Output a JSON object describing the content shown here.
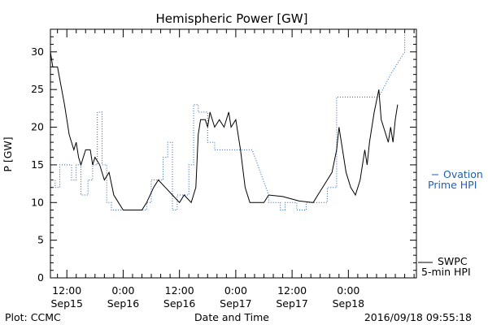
{
  "chart_data": {
    "type": "line",
    "title": "Hemispheric Power [GW]",
    "xlabel": "Date and Time",
    "ylabel": "P [GW]",
    "ylim": [
      0,
      33
    ],
    "xlim": [
      "2016-09-15 08:30",
      "2016-09-18 14:30"
    ],
    "yticks": [
      0,
      5,
      10,
      15,
      20,
      25,
      30
    ],
    "xticks": [
      {
        "time": "2016-09-15 12:00",
        "line1": "12:00",
        "line2": "Sep15"
      },
      {
        "time": "2016-09-16 00:00",
        "line1": "0:00",
        "line2": "Sep16"
      },
      {
        "time": "2016-09-16 12:00",
        "line1": "12:00",
        "line2": "Sep16"
      },
      {
        "time": "2016-09-17 00:00",
        "line1": "0:00",
        "line2": "Sep17"
      },
      {
        "time": "2016-09-17 12:00",
        "line1": "12:00",
        "line2": "Sep17"
      },
      {
        "time": "2016-09-18 00:00",
        "line1": "0:00",
        "line2": "Sep18"
      }
    ],
    "grid": false,
    "legend_position": "right",
    "series": [
      {
        "name": "Ovation Prime HPI",
        "legend_line1": "Ovation",
        "legend_line2": "Prime HPI",
        "color": "#1f5fb5",
        "style": "dotted",
        "points": [
          [
            "2016-09-15 08:30",
            13
          ],
          [
            "2016-09-15 09:30",
            13
          ],
          [
            "2016-09-15 09:30",
            12
          ],
          [
            "2016-09-15 10:30",
            12
          ],
          [
            "2016-09-15 10:30",
            15
          ],
          [
            "2016-09-15 13:00",
            15
          ],
          [
            "2016-09-15 13:00",
            13
          ],
          [
            "2016-09-15 14:00",
            13
          ],
          [
            "2016-09-15 14:00",
            15
          ],
          [
            "2016-09-15 15:00",
            15
          ],
          [
            "2016-09-15 15:00",
            11
          ],
          [
            "2016-09-15 16:30",
            11
          ],
          [
            "2016-09-15 16:30",
            13
          ],
          [
            "2016-09-15 17:30",
            13
          ],
          [
            "2016-09-15 17:30",
            15
          ],
          [
            "2016-09-15 18:30",
            15
          ],
          [
            "2016-09-15 18:30",
            22
          ],
          [
            "2016-09-15 19:30",
            22
          ],
          [
            "2016-09-15 19:30",
            15
          ],
          [
            "2016-09-15 20:30",
            15
          ],
          [
            "2016-09-15 20:30",
            10
          ],
          [
            "2016-09-15 21:30",
            10
          ],
          [
            "2016-09-15 21:30",
            9
          ],
          [
            "2016-09-16 05:00",
            9
          ],
          [
            "2016-09-16 05:00",
            10
          ],
          [
            "2016-09-16 06:00",
            10
          ],
          [
            "2016-09-16 06:00",
            13
          ],
          [
            "2016-09-16 08:30",
            13
          ],
          [
            "2016-09-16 08:30",
            16
          ],
          [
            "2016-09-16 09:30",
            16
          ],
          [
            "2016-09-16 09:30",
            18
          ],
          [
            "2016-09-16 10:30",
            18
          ],
          [
            "2016-09-16 10:30",
            9
          ],
          [
            "2016-09-16 11:30",
            9
          ],
          [
            "2016-09-16 11:30",
            11
          ],
          [
            "2016-09-16 14:00",
            11
          ],
          [
            "2016-09-16 14:00",
            15
          ],
          [
            "2016-09-16 15:00",
            15
          ],
          [
            "2016-09-16 15:00",
            23
          ],
          [
            "2016-09-16 16:00",
            23
          ],
          [
            "2016-09-16 16:00",
            22
          ],
          [
            "2016-09-16 18:00",
            22
          ],
          [
            "2016-09-16 18:00",
            18
          ],
          [
            "2016-09-16 19:30",
            18
          ],
          [
            "2016-09-16 19:30",
            17
          ],
          [
            "2016-09-17 03:30",
            17
          ],
          [
            "2016-09-17 07:00",
            11
          ],
          [
            "2016-09-17 07:00",
            10
          ],
          [
            "2016-09-17 09:30",
            10
          ],
          [
            "2016-09-17 09:30",
            9
          ],
          [
            "2016-09-17 10:30",
            9
          ],
          [
            "2016-09-17 10:30",
            10
          ],
          [
            "2016-09-17 13:00",
            10
          ],
          [
            "2016-09-17 13:00",
            9
          ],
          [
            "2016-09-17 15:00",
            9
          ],
          [
            "2016-09-17 15:00",
            10
          ],
          [
            "2016-09-17 19:30",
            10
          ],
          [
            "2016-09-17 19:30",
            12
          ],
          [
            "2016-09-17 21:30",
            12
          ],
          [
            "2016-09-17 21:30",
            24
          ],
          [
            "2016-09-17 22:30",
            24
          ],
          [
            "2016-09-18 06:30",
            24
          ],
          [
            "2016-09-18 09:00",
            27
          ],
          [
            "2016-09-18 12:00",
            30
          ],
          [
            "2016-09-18 12:00",
            33
          ]
        ]
      },
      {
        "name": "SWPC 5-min HPI",
        "legend_line1": "SWPC",
        "legend_line2": "5-min HPI",
        "color": "#000000",
        "style": "solid",
        "points": [
          [
            "2016-09-15 08:30",
            30
          ],
          [
            "2016-09-15 09:00",
            28
          ],
          [
            "2016-09-15 10:00",
            28
          ],
          [
            "2016-09-15 11:30",
            23
          ],
          [
            "2016-09-15 12:30",
            19
          ],
          [
            "2016-09-15 13:30",
            17
          ],
          [
            "2016-09-15 14:00",
            18
          ],
          [
            "2016-09-15 14:30",
            16
          ],
          [
            "2016-09-15 15:00",
            15
          ],
          [
            "2016-09-15 16:00",
            17
          ],
          [
            "2016-09-15 17:00",
            17
          ],
          [
            "2016-09-15 17:30",
            15
          ],
          [
            "2016-09-15 18:00",
            16
          ],
          [
            "2016-09-15 19:00",
            15
          ],
          [
            "2016-09-15 20:00",
            13
          ],
          [
            "2016-09-15 21:00",
            14
          ],
          [
            "2016-09-15 22:00",
            11
          ],
          [
            "2016-09-15 23:00",
            10
          ],
          [
            "2016-09-16 00:00",
            9
          ],
          [
            "2016-09-16 04:00",
            9
          ],
          [
            "2016-09-16 05:00",
            10
          ],
          [
            "2016-09-16 06:30",
            12
          ],
          [
            "2016-09-16 07:30",
            13
          ],
          [
            "2016-09-16 09:00",
            12
          ],
          [
            "2016-09-16 10:30",
            11
          ],
          [
            "2016-09-16 12:00",
            10
          ],
          [
            "2016-09-16 13:00",
            11
          ],
          [
            "2016-09-16 14:30",
            10
          ],
          [
            "2016-09-16 15:30",
            12
          ],
          [
            "2016-09-16 16:00",
            19
          ],
          [
            "2016-09-16 16:30",
            21
          ],
          [
            "2016-09-16 17:30",
            21
          ],
          [
            "2016-09-16 18:00",
            20
          ],
          [
            "2016-09-16 18:30",
            22
          ],
          [
            "2016-09-16 19:30",
            20
          ],
          [
            "2016-09-16 20:30",
            21
          ],
          [
            "2016-09-16 21:30",
            20
          ],
          [
            "2016-09-16 22:30",
            22
          ],
          [
            "2016-09-16 23:00",
            20
          ],
          [
            "2016-09-17 00:00",
            21
          ],
          [
            "2016-09-17 01:00",
            17
          ],
          [
            "2016-09-17 02:00",
            12
          ],
          [
            "2016-09-17 03:00",
            10
          ],
          [
            "2016-09-17 06:00",
            10
          ],
          [
            "2016-09-17 07:00",
            11
          ],
          [
            "2016-09-17 10:00",
            10.8
          ],
          [
            "2016-09-17 13:30",
            10.2
          ],
          [
            "2016-09-17 16:30",
            10
          ],
          [
            "2016-09-17 17:30",
            11
          ],
          [
            "2016-09-17 19:30",
            13
          ],
          [
            "2016-09-17 20:30",
            14
          ],
          [
            "2016-09-17 21:30",
            17
          ],
          [
            "2016-09-17 22:00",
            20
          ],
          [
            "2016-09-17 22:30",
            18
          ],
          [
            "2016-09-17 23:30",
            14
          ],
          [
            "2016-09-18 00:30",
            12
          ],
          [
            "2016-09-18 01:30",
            11
          ],
          [
            "2016-09-18 02:30",
            13
          ],
          [
            "2016-09-18 03:30",
            17
          ],
          [
            "2016-09-18 04:00",
            15
          ],
          [
            "2016-09-18 04:30",
            18
          ],
          [
            "2016-09-18 05:30",
            22
          ],
          [
            "2016-09-18 06:30",
            25
          ],
          [
            "2016-09-18 07:00",
            21
          ],
          [
            "2016-09-18 07:30",
            20
          ],
          [
            "2016-09-18 08:00",
            19
          ],
          [
            "2016-09-18 08:30",
            18
          ],
          [
            "2016-09-18 09:00",
            20
          ],
          [
            "2016-09-18 09:30",
            18
          ],
          [
            "2016-09-18 10:00",
            21
          ],
          [
            "2016-09-18 10:30",
            23
          ]
        ]
      }
    ]
  },
  "footer": {
    "left": "Plot: CCMC",
    "right": "2016/09/18 09:55:18"
  }
}
